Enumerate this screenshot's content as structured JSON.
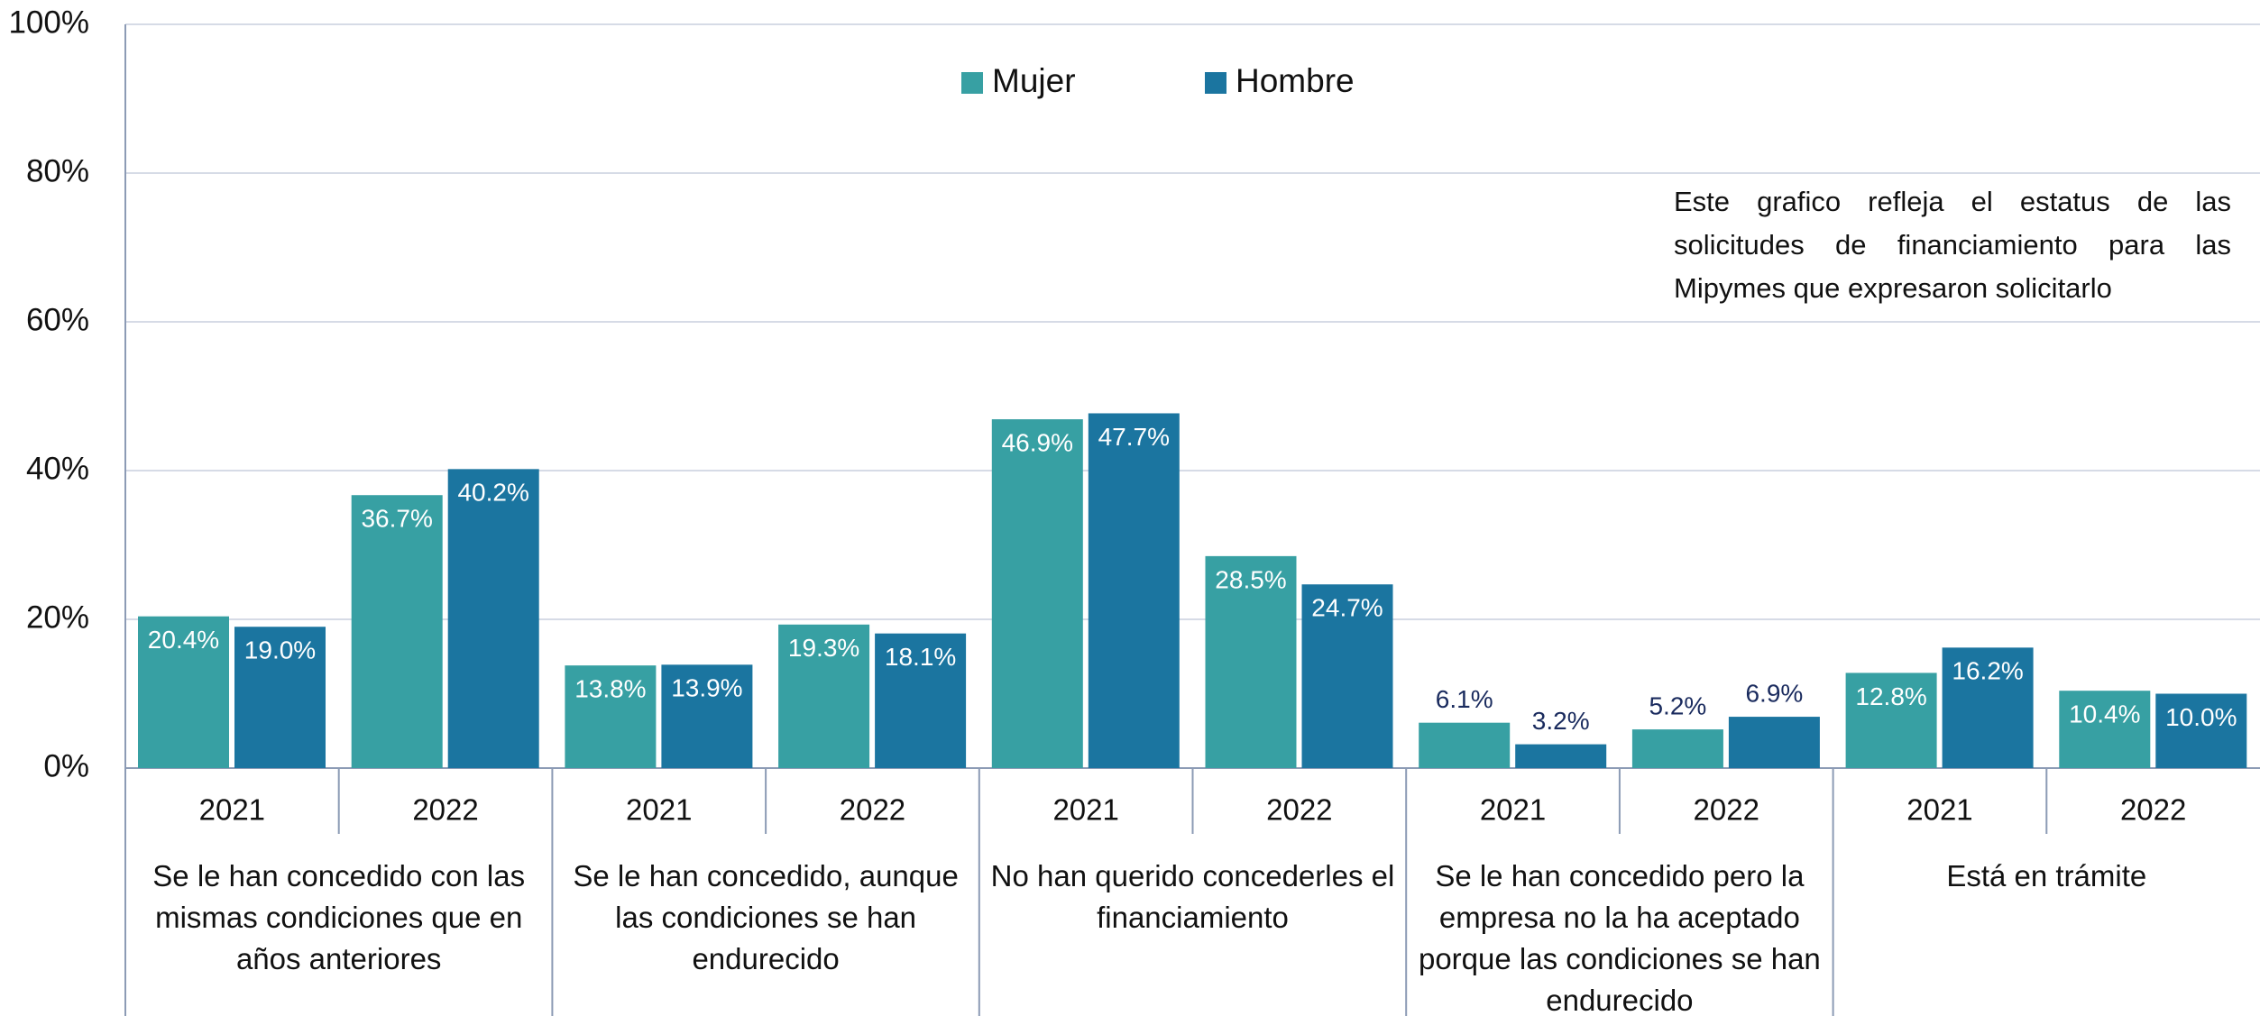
{
  "chart_data": {
    "type": "bar",
    "categories": [
      "2021",
      "2022",
      "2021",
      "2022",
      "2021",
      "2022",
      "2021",
      "2022",
      "2021",
      "2022"
    ],
    "groups": [
      "Se le han concedido con las mismas condiciones que en años anteriores",
      "Se le han concedido, aunque las condiciones se han endurecido",
      "No han querido concederles el financiamiento",
      "Se le han concedido pero la empresa no la ha aceptado porque las condiciones se han endurecido",
      "Está en trámite"
    ],
    "series": [
      {
        "name": "Mujer",
        "color": "#37a0a3",
        "values": [
          20.4,
          36.7,
          13.8,
          19.3,
          46.9,
          28.5,
          6.1,
          5.2,
          12.8,
          10.4
        ],
        "value_labels": [
          "20.4%",
          "36.7%",
          "13.8%",
          "19.3%",
          "46.9%",
          "28.5%",
          "6.1%",
          "5.2%",
          "12.8%",
          "10.4%"
        ]
      },
      {
        "name": "Hombre",
        "color": "#1b75a0",
        "values": [
          19.0,
          40.2,
          13.9,
          18.1,
          47.7,
          24.7,
          3.2,
          6.9,
          16.2,
          10.0
        ],
        "value_labels": [
          "19.0%",
          "40.2%",
          "13.9%",
          "18.1%",
          "47.7%",
          "24.7%",
          "3.2%",
          "6.9%",
          "16.2%",
          "10.0%"
        ]
      }
    ],
    "ylim": [
      0,
      100
    ],
    "yticks": [
      {
        "value": 0,
        "label": "0%"
      },
      {
        "value": 20,
        "label": "20%"
      },
      {
        "value": 40,
        "label": "40%"
      },
      {
        "value": 60,
        "label": "60%"
      },
      {
        "value": 80,
        "label": "80%"
      },
      {
        "value": 100,
        "label": "100%"
      }
    ],
    "grid": true,
    "legend": "top",
    "annotation": "Este grafico refleja el estatus de las solicitudes de financiamiento para las Mipymes que expresaron solicitarlo"
  }
}
